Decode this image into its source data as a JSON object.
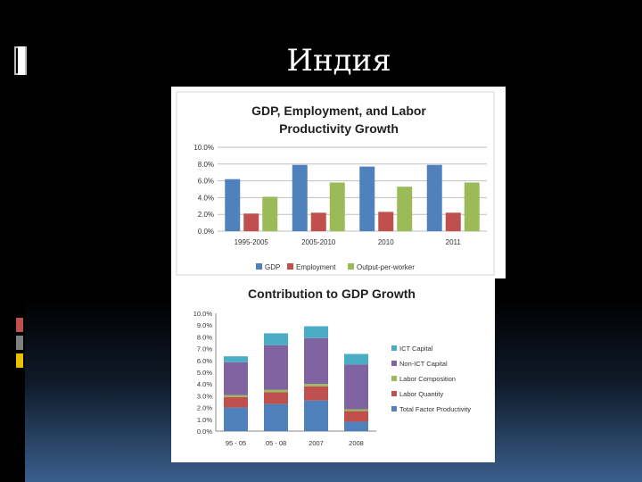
{
  "slide": {
    "title": "Индия"
  },
  "colors": {
    "gdp": "#4f81bd",
    "employment": "#c0504d",
    "output": "#9bbb59",
    "ict": "#4bacc6",
    "nonict": "#8064a2",
    "labor_comp": "#9bbb59",
    "labor_qty": "#c0504d",
    "tfp": "#4f81bd",
    "accent_red": "#c0504d",
    "accent_gray": "#7f7f7f",
    "accent_yellow": "#e6c200"
  },
  "chart_data": [
    {
      "type": "bar",
      "title": "GDP, Employment, and Labor",
      "title_line2": "Productivity Growth",
      "categories": [
        "1995-2005",
        "2005-2010",
        "2010",
        "2011"
      ],
      "series": [
        {
          "name": "GDP",
          "values": [
            6.2,
            7.9,
            7.7,
            7.9
          ]
        },
        {
          "name": "Employment",
          "values": [
            2.1,
            2.2,
            2.3,
            2.2
          ]
        },
        {
          "name": "Output-per-worker",
          "values": [
            4.1,
            5.8,
            5.3,
            5.8
          ]
        }
      ],
      "yticks": [
        "10.0%",
        "8.0%",
        "6.0%",
        "4.0%",
        "2.0%",
        "0.0%"
      ],
      "ylim": [
        0,
        10
      ],
      "legend": "bottom"
    },
    {
      "type": "bar",
      "stacked": true,
      "title": "Contribution to GDP Growth",
      "categories": [
        "95 - 05",
        "05 - 08",
        "2007",
        "2008"
      ],
      "series": [
        {
          "name": "Total Factor Productivity",
          "values": [
            2.0,
            2.3,
            2.6,
            0.8
          ]
        },
        {
          "name": "Labor Quantity",
          "values": [
            0.9,
            1.0,
            1.2,
            0.9
          ]
        },
        {
          "name": "Labor Composition",
          "values": [
            0.15,
            0.2,
            0.2,
            0.15
          ]
        },
        {
          "name": "Non-ICT Capital",
          "values": [
            2.8,
            3.8,
            3.9,
            3.8
          ]
        },
        {
          "name": "ICT Capital",
          "values": [
            0.5,
            1.0,
            1.0,
            0.9
          ]
        }
      ],
      "legend_order": [
        "ICT Capital",
        "Non-ICT Capital",
        "Labor Composition",
        "Labor Quantity",
        "Total Factor Productivity"
      ],
      "yticks": [
        "10.0%",
        "9.0%",
        "8.0%",
        "7.0%",
        "6.0%",
        "5.0%",
        "4.0%",
        "3.0%",
        "2.0%",
        "1.0%",
        "0.0%"
      ],
      "ylim": [
        0,
        10
      ],
      "legend": "right"
    }
  ]
}
